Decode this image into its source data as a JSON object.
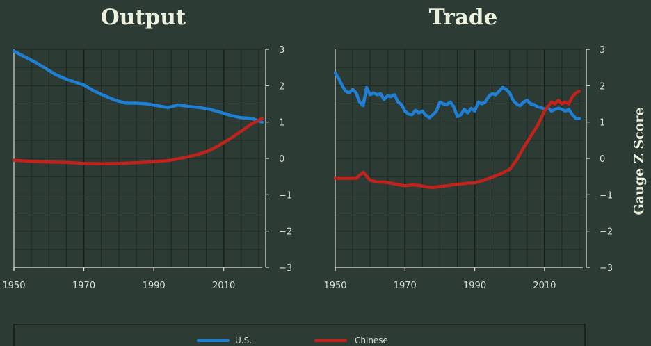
{
  "colors": {
    "background": "#2c3b33",
    "us": "#1f7fd4",
    "chinese": "#c0231c",
    "text": "#ecf1dd"
  },
  "y_axis_title": "Gauge Z Score",
  "legend": {
    "us": "U.S.",
    "chinese": "Chinese"
  },
  "chart_data": [
    {
      "type": "line",
      "title": "Output",
      "xlim": [
        1950,
        2021
      ],
      "ylim": [
        -3,
        3
      ],
      "x_ticks": [
        1950,
        1970,
        1990,
        2010
      ],
      "y_ticks": [
        3,
        2,
        1,
        0,
        -1,
        -2,
        -3
      ],
      "grid": true,
      "series": [
        {
          "name": "U.S.",
          "color": "#1f7fd4",
          "x": [
            1950,
            1953,
            1956,
            1959,
            1962,
            1965,
            1968,
            1970,
            1973,
            1976,
            1979,
            1982,
            1985,
            1988,
            1991,
            1994,
            1997,
            2000,
            2003,
            2006,
            2009,
            2012,
            2015,
            2018,
            2021
          ],
          "y": [
            2.95,
            2.8,
            2.65,
            2.48,
            2.3,
            2.18,
            2.08,
            2.02,
            1.85,
            1.72,
            1.6,
            1.52,
            1.52,
            1.5,
            1.45,
            1.4,
            1.47,
            1.43,
            1.4,
            1.35,
            1.27,
            1.18,
            1.12,
            1.1,
            1.0
          ]
        },
        {
          "name": "Chinese",
          "color": "#c0231c",
          "x": [
            1950,
            1955,
            1960,
            1965,
            1970,
            1975,
            1980,
            1985,
            1990,
            1995,
            2000,
            2003,
            2006,
            2009,
            2012,
            2015,
            2018,
            2021
          ],
          "y": [
            -0.05,
            -0.08,
            -0.1,
            -0.11,
            -0.14,
            -0.15,
            -0.14,
            -0.12,
            -0.09,
            -0.05,
            0.05,
            0.12,
            0.22,
            0.38,
            0.55,
            0.75,
            0.95,
            1.1
          ]
        }
      ]
    },
    {
      "type": "line",
      "title": "Trade",
      "xlim": [
        1950,
        2021
      ],
      "ylim": [
        -3,
        3
      ],
      "x_ticks": [
        1950,
        1970,
        1990,
        2010
      ],
      "y_ticks": [
        3,
        2,
        1,
        0,
        -1,
        -2,
        -3
      ],
      "grid": true,
      "series": [
        {
          "name": "U.S.",
          "color": "#1f7fd4",
          "x": [
            1950,
            1951,
            1952,
            1953,
            1954,
            1955,
            1956,
            1957,
            1958,
            1959,
            1960,
            1961,
            1962,
            1963,
            1964,
            1965,
            1966,
            1967,
            1968,
            1969,
            1970,
            1971,
            1972,
            1973,
            1974,
            1975,
            1976,
            1977,
            1978,
            1979,
            1980,
            1981,
            1982,
            1983,
            1984,
            1985,
            1986,
            1987,
            1988,
            1989,
            1990,
            1991,
            1992,
            1993,
            1994,
            1995,
            1996,
            1997,
            1998,
            1999,
            2000,
            2001,
            2002,
            2003,
            2004,
            2005,
            2006,
            2007,
            2008,
            2009,
            2010,
            2011,
            2012,
            2013,
            2014,
            2015,
            2016,
            2017,
            2018,
            2019,
            2020
          ],
          "y": [
            2.35,
            2.2,
            2.0,
            1.85,
            1.8,
            1.9,
            1.8,
            1.55,
            1.45,
            1.95,
            1.75,
            1.8,
            1.75,
            1.78,
            1.62,
            1.72,
            1.7,
            1.75,
            1.55,
            1.48,
            1.3,
            1.22,
            1.2,
            1.32,
            1.25,
            1.3,
            1.18,
            1.12,
            1.2,
            1.3,
            1.55,
            1.5,
            1.48,
            1.55,
            1.42,
            1.15,
            1.2,
            1.35,
            1.25,
            1.38,
            1.3,
            1.55,
            1.5,
            1.55,
            1.7,
            1.78,
            1.75,
            1.85,
            1.95,
            1.9,
            1.8,
            1.6,
            1.5,
            1.45,
            1.55,
            1.6,
            1.5,
            1.48,
            1.42,
            1.4,
            1.35,
            1.4,
            1.3,
            1.35,
            1.38,
            1.35,
            1.3,
            1.35,
            1.2,
            1.1,
            1.1
          ]
        },
        {
          "name": "Chinese",
          "color": "#c0231c",
          "x": [
            1950,
            1952,
            1954,
            1956,
            1958,
            1960,
            1962,
            1964,
            1966,
            1968,
            1970,
            1972,
            1974,
            1976,
            1978,
            1980,
            1982,
            1984,
            1986,
            1988,
            1990,
            1992,
            1994,
            1996,
            1998,
            2000,
            2002,
            2004,
            2006,
            2008,
            2010,
            2012,
            2013,
            2014,
            2015,
            2016,
            2017,
            2018,
            2019,
            2020
          ],
          "y": [
            -0.55,
            -0.55,
            -0.55,
            -0.55,
            -0.38,
            -0.6,
            -0.65,
            -0.65,
            -0.68,
            -0.72,
            -0.75,
            -0.73,
            -0.74,
            -0.78,
            -0.8,
            -0.77,
            -0.75,
            -0.72,
            -0.7,
            -0.68,
            -0.67,
            -0.62,
            -0.55,
            -0.48,
            -0.4,
            -0.3,
            -0.05,
            0.3,
            0.6,
            0.9,
            1.3,
            1.55,
            1.5,
            1.6,
            1.5,
            1.55,
            1.5,
            1.7,
            1.8,
            1.85
          ]
        }
      ]
    }
  ]
}
